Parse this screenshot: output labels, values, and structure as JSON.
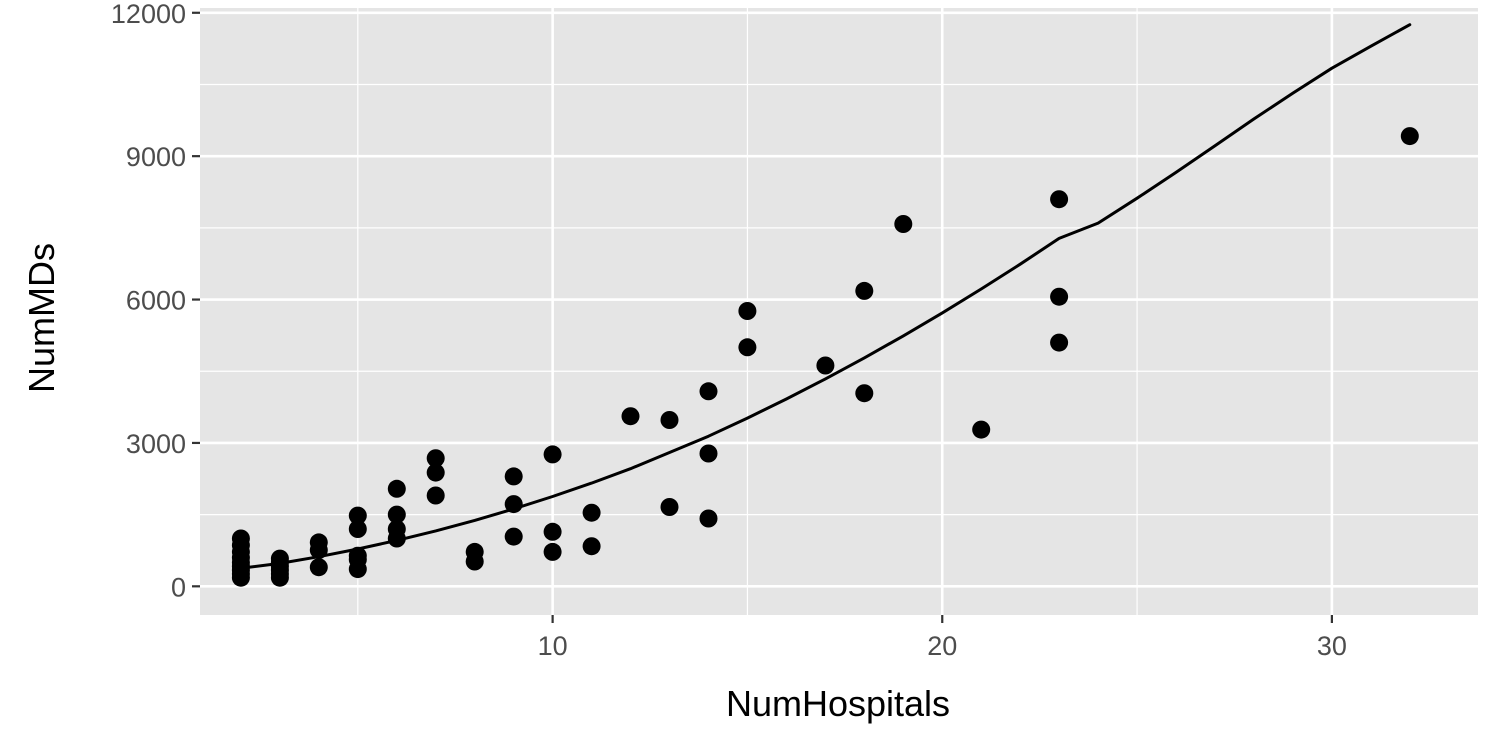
{
  "chart_data": {
    "type": "scatter",
    "xlabel": "NumHospitals",
    "ylabel": "NumMDs",
    "xlim": [
      0.95,
      33.75
    ],
    "ylim": [
      -600,
      12100
    ],
    "x_ticks": [
      10,
      20,
      30
    ],
    "x_tick_labels": [
      "10",
      "20",
      "30"
    ],
    "y_ticks": [
      0,
      3000,
      6000,
      9000,
      12000
    ],
    "y_tick_labels": [
      "0",
      "3000",
      "6000",
      "9000",
      "12000"
    ],
    "x_minor_ticks": [
      5,
      15,
      25
    ],
    "y_minor_ticks": [
      1500,
      4500,
      7500,
      10500
    ],
    "grid": true,
    "legend": "none",
    "colors": {
      "panel": "#e5e5e5",
      "grid": "#ffffff",
      "points": "#000000",
      "line": "#000000",
      "tick_mark": "#333333"
    },
    "series": [
      {
        "type": "scatter",
        "points": [
          [
            2,
            180
          ],
          [
            2,
            260
          ],
          [
            2,
            340
          ],
          [
            2,
            420
          ],
          [
            2,
            500
          ],
          [
            2,
            600
          ],
          [
            2,
            720
          ],
          [
            2,
            860
          ],
          [
            2,
            1000
          ],
          [
            3,
            180
          ],
          [
            3,
            260
          ],
          [
            3,
            340
          ],
          [
            3,
            420
          ],
          [
            3,
            500
          ],
          [
            3,
            580
          ],
          [
            4,
            400
          ],
          [
            4,
            760
          ],
          [
            4,
            920
          ],
          [
            5,
            360
          ],
          [
            5,
            560
          ],
          [
            5,
            640
          ],
          [
            5,
            1200
          ],
          [
            5,
            1480
          ],
          [
            6,
            1000
          ],
          [
            6,
            1200
          ],
          [
            6,
            1500
          ],
          [
            6,
            2040
          ],
          [
            7,
            1900
          ],
          [
            7,
            2380
          ],
          [
            7,
            2680
          ],
          [
            8,
            520
          ],
          [
            8,
            720
          ],
          [
            9,
            1040
          ],
          [
            9,
            1720
          ],
          [
            9,
            2300
          ],
          [
            10,
            720
          ],
          [
            10,
            1140
          ],
          [
            10,
            2760
          ],
          [
            11,
            840
          ],
          [
            11,
            1540
          ],
          [
            12,
            3560
          ],
          [
            13,
            1660
          ],
          [
            13,
            3480
          ],
          [
            14,
            1420
          ],
          [
            14,
            2780
          ],
          [
            14,
            4080
          ],
          [
            15,
            5000
          ],
          [
            15,
            5760
          ],
          [
            17,
            4620
          ],
          [
            18,
            4040
          ],
          [
            18,
            6180
          ],
          [
            19,
            7580
          ],
          [
            21,
            3280
          ],
          [
            23,
            5100
          ],
          [
            23,
            6060
          ],
          [
            23,
            8100
          ],
          [
            32,
            9420
          ]
        ]
      },
      {
        "type": "line",
        "points": [
          [
            2,
            380
          ],
          [
            3,
            480
          ],
          [
            4,
            620
          ],
          [
            5,
            780
          ],
          [
            6,
            960
          ],
          [
            7,
            1160
          ],
          [
            8,
            1380
          ],
          [
            9,
            1620
          ],
          [
            10,
            1880
          ],
          [
            11,
            2160
          ],
          [
            12,
            2460
          ],
          [
            13,
            2800
          ],
          [
            14,
            3140
          ],
          [
            15,
            3520
          ],
          [
            16,
            3920
          ],
          [
            17,
            4340
          ],
          [
            18,
            4780
          ],
          [
            19,
            5240
          ],
          [
            20,
            5720
          ],
          [
            21,
            6220
          ],
          [
            22,
            6740
          ],
          [
            23,
            7280
          ],
          [
            24,
            7600
          ],
          [
            25,
            8120
          ],
          [
            26,
            8660
          ],
          [
            27,
            9220
          ],
          [
            28,
            9780
          ],
          [
            29,
            10320
          ],
          [
            30,
            10840
          ],
          [
            31,
            11300
          ],
          [
            32,
            11750
          ]
        ]
      }
    ]
  }
}
